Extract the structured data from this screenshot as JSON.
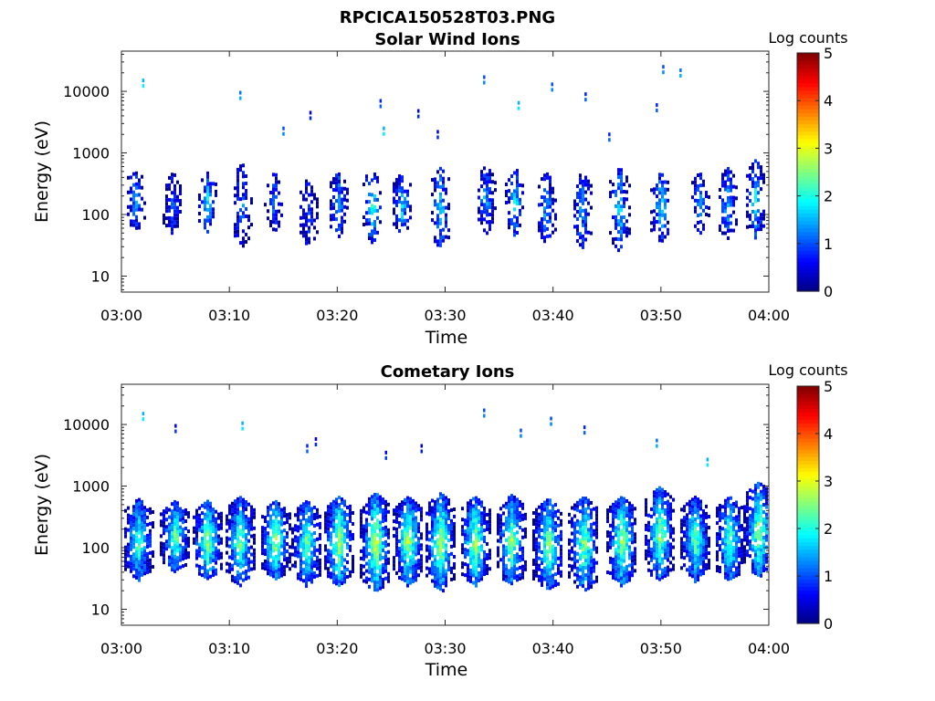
{
  "figure": {
    "title": "RPCICA150528T03.PNG"
  },
  "chart_data": [
    {
      "type": "heatmap",
      "title": "Solar Wind Ions",
      "xlabel": "Time",
      "ylabel": "Energy (eV)",
      "x_ticks": [
        "03:00",
        "03:10",
        "03:20",
        "03:30",
        "03:40",
        "03:50",
        "04:00"
      ],
      "x_range_minutes": [
        0,
        60
      ],
      "y_scale": "log",
      "y_ticks": [
        10,
        100,
        1000,
        10000
      ],
      "y_tick_labels": [
        "10",
        "100",
        "1000",
        "10000"
      ],
      "y_range": [
        5.5,
        45000
      ],
      "colorbar": {
        "label": "Log counts",
        "range": [
          0,
          5
        ],
        "ticks": [
          "0",
          "1",
          "2",
          "3",
          "4",
          "5"
        ],
        "colormap": "jet"
      },
      "grid": false,
      "bursts": [
        {
          "t": 1.3,
          "low": 55,
          "high": 600,
          "peak": 1.4
        },
        {
          "t": 4.8,
          "low": 45,
          "high": 500,
          "peak": 1.0
        },
        {
          "t": 8.0,
          "low": 55,
          "high": 500,
          "peak": 1.8
        },
        {
          "t": 11.2,
          "low": 30,
          "high": 700,
          "peak": 1.2
        },
        {
          "t": 14.2,
          "low": 55,
          "high": 500,
          "peak": 1.2
        },
        {
          "t": 17.3,
          "low": 30,
          "high": 400,
          "peak": 1.0
        },
        {
          "t": 20.1,
          "low": 45,
          "high": 500,
          "peak": 1.8
        },
        {
          "t": 23.3,
          "low": 35,
          "high": 600,
          "peak": 2.2
        },
        {
          "t": 26.0,
          "low": 45,
          "high": 500,
          "peak": 1.8
        },
        {
          "t": 29.6,
          "low": 30,
          "high": 600,
          "peak": 1.8
        },
        {
          "t": 33.8,
          "low": 50,
          "high": 650,
          "peak": 1.6
        },
        {
          "t": 36.5,
          "low": 45,
          "high": 600,
          "peak": 1.8
        },
        {
          "t": 39.4,
          "low": 35,
          "high": 500,
          "peak": 1.6
        },
        {
          "t": 42.7,
          "low": 30,
          "high": 500,
          "peak": 1.5
        },
        {
          "t": 46.2,
          "low": 25,
          "high": 600,
          "peak": 2.0
        },
        {
          "t": 50.0,
          "low": 35,
          "high": 500,
          "peak": 2.0
        },
        {
          "t": 53.6,
          "low": 50,
          "high": 500,
          "peak": 1.5
        },
        {
          "t": 56.2,
          "low": 40,
          "high": 600,
          "peak": 1.6
        },
        {
          "t": 58.8,
          "low": 40,
          "high": 800,
          "peak": 2.0
        }
      ],
      "sparse_points": [
        {
          "t": 2.0,
          "e": 15000,
          "c": 1.5
        },
        {
          "t": 11.0,
          "e": 9500,
          "c": 1.2
        },
        {
          "t": 15.0,
          "e": 2500,
          "c": 1.0
        },
        {
          "t": 17.5,
          "e": 4500,
          "c": 0.5
        },
        {
          "t": 24.0,
          "e": 7000,
          "c": 0.8
        },
        {
          "t": 24.3,
          "e": 2500,
          "c": 1.5
        },
        {
          "t": 27.5,
          "e": 4800,
          "c": 0.5
        },
        {
          "t": 29.3,
          "e": 2200,
          "c": 0.5
        },
        {
          "t": 33.6,
          "e": 17000,
          "c": 1.0
        },
        {
          "t": 36.8,
          "e": 6500,
          "c": 1.5
        },
        {
          "t": 39.9,
          "e": 13000,
          "c": 1.0
        },
        {
          "t": 43.0,
          "e": 9000,
          "c": 0.8
        },
        {
          "t": 45.2,
          "e": 2000,
          "c": 0.8
        },
        {
          "t": 50.2,
          "e": 25000,
          "c": 1.0
        },
        {
          "t": 51.8,
          "e": 22000,
          "c": 1.2
        },
        {
          "t": 49.6,
          "e": 6000,
          "c": 0.8
        }
      ]
    },
    {
      "type": "heatmap",
      "title": "Cometary Ions",
      "xlabel": "Time",
      "ylabel": "Energy (eV)",
      "x_ticks": [
        "03:00",
        "03:10",
        "03:20",
        "03:30",
        "03:40",
        "03:50",
        "04:00"
      ],
      "x_range_minutes": [
        0,
        60
      ],
      "y_scale": "log",
      "y_ticks": [
        10,
        100,
        1000,
        10000
      ],
      "y_tick_labels": [
        "10",
        "100",
        "1000",
        "10000"
      ],
      "y_range": [
        5.5,
        45000
      ],
      "colorbar": {
        "label": "Log counts",
        "range": [
          0,
          5
        ],
        "ticks": [
          "0",
          "1",
          "2",
          "3",
          "4",
          "5"
        ],
        "colormap": "jet"
      },
      "grid": false,
      "bursts": [
        {
          "t": 1.6,
          "low": 30,
          "high": 650,
          "peak": 2.4
        },
        {
          "t": 5.0,
          "low": 40,
          "high": 600,
          "peak": 2.5
        },
        {
          "t": 8.0,
          "low": 30,
          "high": 600,
          "peak": 2.8
        },
        {
          "t": 11.0,
          "low": 25,
          "high": 700,
          "peak": 2.6
        },
        {
          "t": 14.3,
          "low": 30,
          "high": 600,
          "peak": 2.8
        },
        {
          "t": 17.2,
          "low": 25,
          "high": 600,
          "peak": 2.6
        },
        {
          "t": 20.2,
          "low": 25,
          "high": 700,
          "peak": 3.0
        },
        {
          "t": 23.6,
          "low": 20,
          "high": 800,
          "peak": 3.1
        },
        {
          "t": 26.6,
          "low": 25,
          "high": 700,
          "peak": 2.9
        },
        {
          "t": 29.6,
          "low": 20,
          "high": 800,
          "peak": 3.0
        },
        {
          "t": 32.8,
          "low": 25,
          "high": 700,
          "peak": 2.9
        },
        {
          "t": 36.2,
          "low": 25,
          "high": 750,
          "peak": 2.8
        },
        {
          "t": 39.6,
          "low": 20,
          "high": 650,
          "peak": 2.7
        },
        {
          "t": 42.9,
          "low": 20,
          "high": 700,
          "peak": 2.7
        },
        {
          "t": 46.4,
          "low": 25,
          "high": 700,
          "peak": 2.9
        },
        {
          "t": 49.9,
          "low": 30,
          "high": 1000,
          "peak": 2.8
        },
        {
          "t": 53.2,
          "low": 30,
          "high": 700,
          "peak": 2.5
        },
        {
          "t": 56.4,
          "low": 30,
          "high": 700,
          "peak": 2.5
        },
        {
          "t": 59.1,
          "low": 35,
          "high": 1200,
          "peak": 2.8
        }
      ],
      "sparse_points": [
        {
          "t": 2.0,
          "e": 15000,
          "c": 1.5
        },
        {
          "t": 5.0,
          "e": 9500,
          "c": 0.6
        },
        {
          "t": 11.2,
          "e": 10500,
          "c": 1.5
        },
        {
          "t": 17.2,
          "e": 4500,
          "c": 0.8
        },
        {
          "t": 18.0,
          "e": 5800,
          "c": 0.5
        },
        {
          "t": 24.5,
          "e": 3500,
          "c": 0.6
        },
        {
          "t": 27.8,
          "e": 4500,
          "c": 0.5
        },
        {
          "t": 33.6,
          "e": 17000,
          "c": 1.0
        },
        {
          "t": 37.0,
          "e": 8000,
          "c": 1.0
        },
        {
          "t": 39.8,
          "e": 12500,
          "c": 1.0
        },
        {
          "t": 42.9,
          "e": 9000,
          "c": 0.8
        },
        {
          "t": 49.6,
          "e": 5500,
          "c": 1.2
        },
        {
          "t": 54.3,
          "e": 2700,
          "c": 1.5
        }
      ]
    }
  ]
}
